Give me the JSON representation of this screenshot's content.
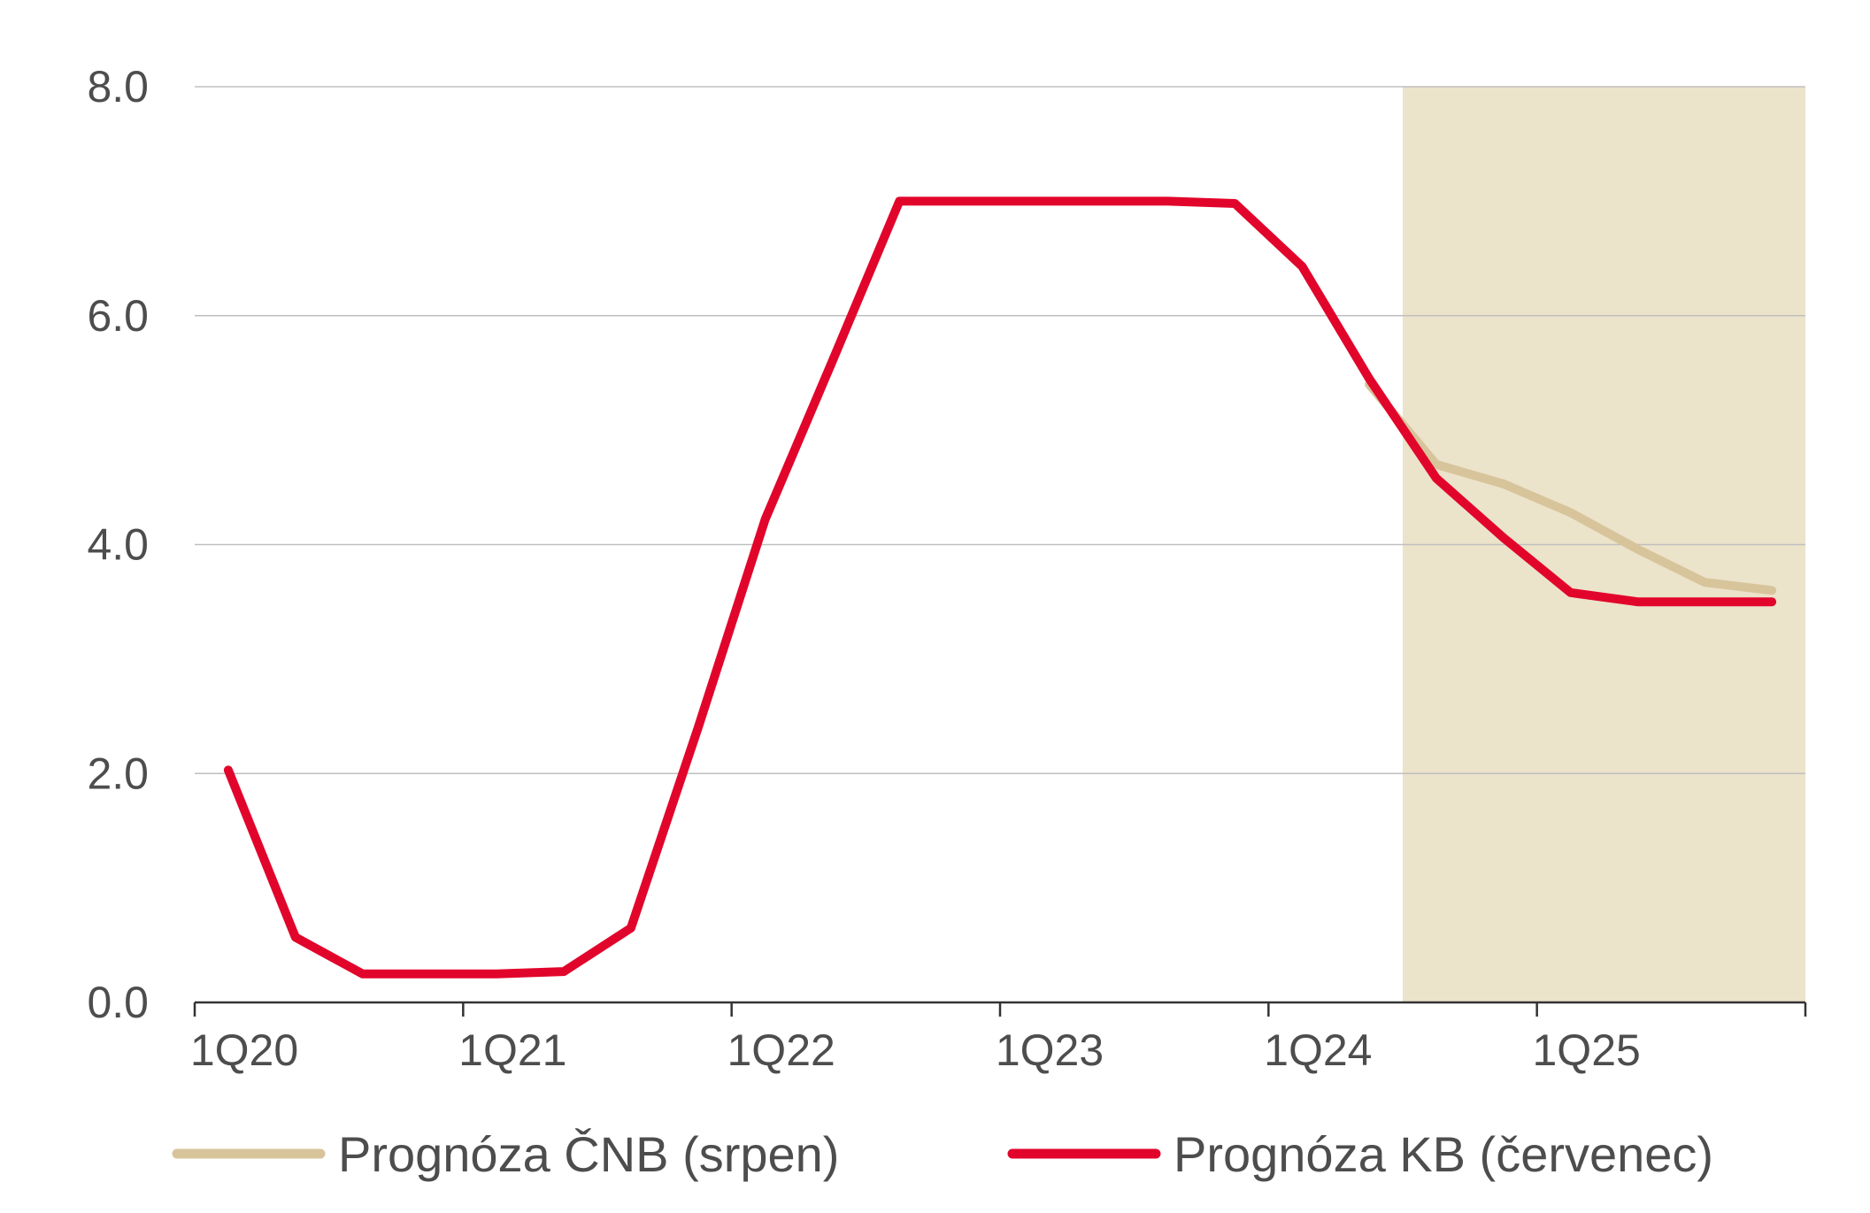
{
  "chart_data": {
    "type": "line",
    "title": "",
    "xlabel": "",
    "ylabel": "",
    "x_start": "1Q20",
    "x_end": "4Q25",
    "x_tick_labels": [
      "1Q20",
      "1Q21",
      "1Q22",
      "1Q23",
      "1Q24",
      "1Q25"
    ],
    "ylim": [
      0.0,
      8.0
    ],
    "y_ticks": [
      "0.0",
      "2.0",
      "4.0",
      "6.0",
      "8.0"
    ],
    "grid": "horizontal",
    "forecast_shading": {
      "from": "3Q24",
      "to": "4Q25",
      "color": "#ece3cb"
    },
    "legend_position": "bottom",
    "series": [
      {
        "name": "Prognóza ČNB (srpen)",
        "color": "#d8c49b",
        "x": [
          "2Q24",
          "3Q24",
          "4Q24",
          "1Q25",
          "2Q25",
          "3Q25",
          "4Q25"
        ],
        "y": [
          5.4,
          4.7,
          4.53,
          4.28,
          3.96,
          3.67,
          3.6
        ]
      },
      {
        "name": "Prognóza KB (červenec)",
        "color": "#e2052b",
        "x": [
          "1Q20",
          "2Q20",
          "3Q20",
          "4Q20",
          "1Q21",
          "2Q21",
          "3Q21",
          "4Q21",
          "1Q22",
          "2Q22",
          "3Q22",
          "4Q22",
          "1Q23",
          "2Q23",
          "3Q23",
          "4Q23",
          "1Q24",
          "2Q24",
          "3Q24",
          "4Q24",
          "1Q25",
          "2Q25",
          "3Q25",
          "4Q25"
        ],
        "y": [
          2.03,
          0.57,
          0.25,
          0.25,
          0.25,
          0.27,
          0.65,
          2.4,
          4.22,
          5.6,
          7.0,
          7.0,
          7.0,
          7.0,
          7.0,
          6.98,
          6.43,
          5.45,
          4.58,
          4.06,
          3.58,
          3.5,
          3.5,
          3.5
        ]
      }
    ]
  }
}
